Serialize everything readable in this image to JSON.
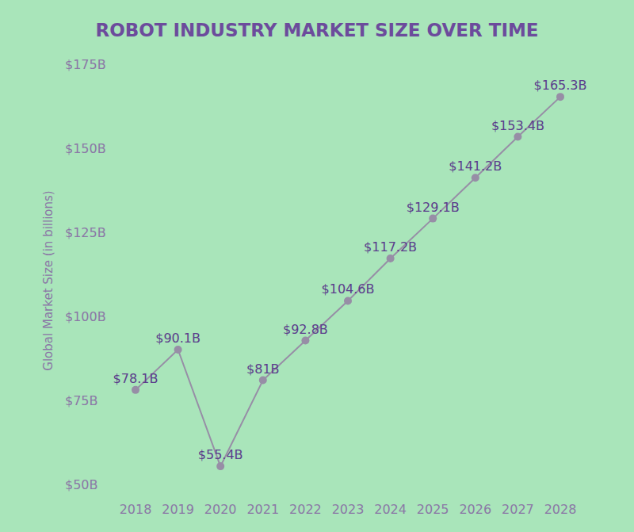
{
  "chart_data": {
    "type": "line",
    "title": "ROBOT INDUSTRY MARKET SIZE OVER TIME",
    "y_label": "Global Market Size (in billions)",
    "categories": [
      "2018",
      "2019",
      "2020",
      "2021",
      "2022",
      "2023",
      "2024",
      "2025",
      "2026",
      "2027",
      "2028"
    ],
    "values": [
      78.1,
      90.1,
      55.4,
      81,
      92.8,
      104.6,
      117.2,
      129.1,
      141.2,
      153.4,
      165.3
    ],
    "value_labels": [
      "$78.1B",
      "$90.1B",
      "$55.4B",
      "$81B",
      "$92.8B",
      "$104.6B",
      "$117.2B",
      "$129.1B",
      "$141.2B",
      "$153.4B",
      "$165.3B"
    ],
    "ylim": [
      50,
      175
    ],
    "yticks": [
      {
        "value": 50,
        "label": "$50B"
      },
      {
        "value": 75,
        "label": "$75B"
      },
      {
        "value": 100,
        "label": "$100B"
      },
      {
        "value": 125,
        "label": "$125B"
      },
      {
        "value": 150,
        "label": "$150B"
      },
      {
        "value": 175,
        "label": "$175B"
      }
    ],
    "color": "#978ea6",
    "marker": "circle",
    "line_style": "solid",
    "data_labels": true,
    "grid": false
  }
}
